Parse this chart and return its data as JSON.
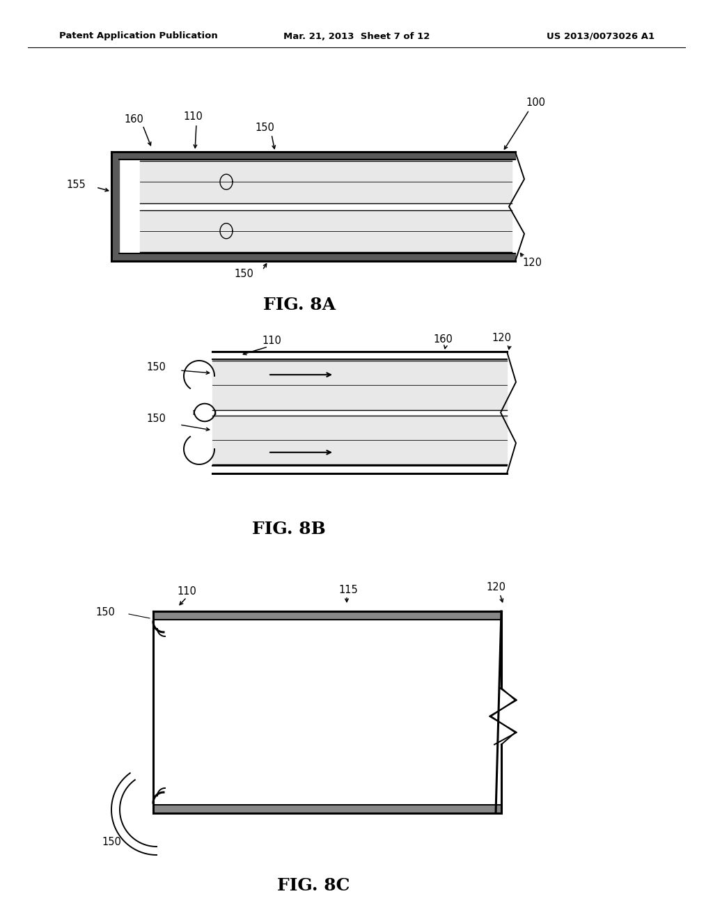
{
  "background_color": "#ffffff",
  "header_left": "Patent Application Publication",
  "header_center": "Mar. 21, 2013  Sheet 7 of 12",
  "header_right": "US 2013/0073026 A1",
  "fig8a_label": "FIG. 8A",
  "fig8b_label": "FIG. 8B",
  "fig8c_label": "FIG. 8C",
  "line_color": "#000000",
  "label_fontsize": 10.5,
  "fig_label_fontsize": 18,
  "header_fontsize": 9.5
}
